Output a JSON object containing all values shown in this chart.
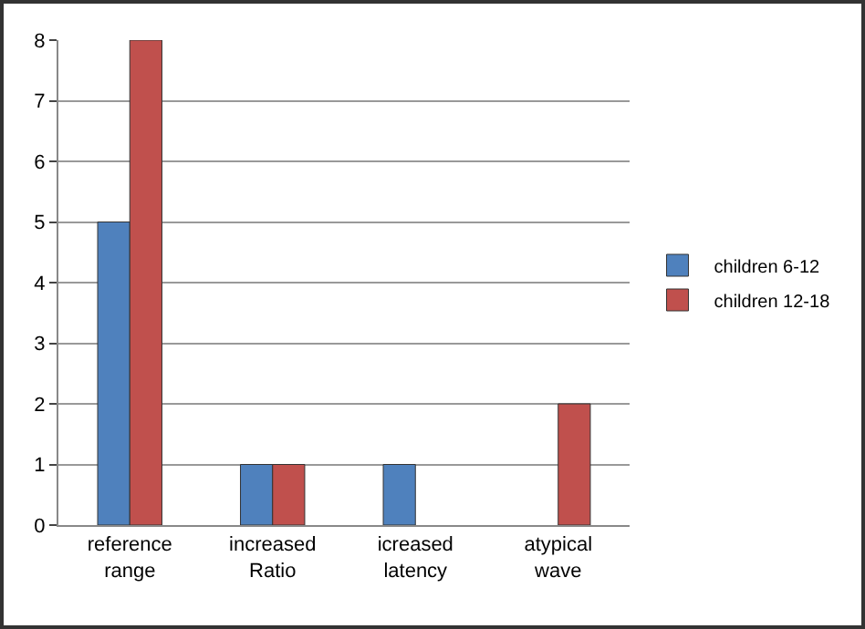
{
  "chart_data": {
    "type": "bar",
    "categories": [
      "reference range",
      "increased Ratio",
      "icreased latency",
      "atypical wave"
    ],
    "series": [
      {
        "name": "children 6-12",
        "color": "#4f81bd",
        "values": [
          5,
          1,
          1,
          null
        ]
      },
      {
        "name": "children 12-18",
        "color": "#c0504d",
        "values": [
          8,
          1,
          null,
          2
        ]
      }
    ],
    "ylim": [
      0,
      8
    ],
    "yticks": [
      0,
      1,
      2,
      3,
      4,
      5,
      6,
      7,
      8
    ],
    "grid": "y",
    "legend": "right"
  }
}
